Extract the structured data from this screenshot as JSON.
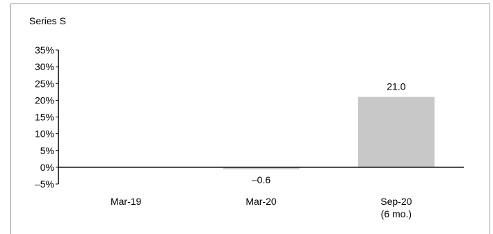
{
  "chart_data": {
    "type": "bar",
    "title": "Series S",
    "categories": [
      "Mar-19",
      "Mar-20",
      "Sep-20"
    ],
    "category_sublabels": [
      "",
      "",
      "(6 mo.)"
    ],
    "values": [
      null,
      -0.6,
      21.0
    ],
    "data_labels": [
      "",
      "–0.6",
      "21.0"
    ],
    "ylim": [
      -5,
      35
    ],
    "yticks": [
      35,
      30,
      25,
      20,
      15,
      10,
      5,
      0,
      -5
    ],
    "ytick_labels": [
      "35%",
      "30%",
      "25%",
      "20%",
      "15%",
      "10%",
      "5%",
      "0%",
      "–5%"
    ],
    "xlabel": "",
    "ylabel": "",
    "grid": false,
    "colors": {
      "bar": "#c8c8c8",
      "axis": "#000000",
      "frame": "#9e9e9e"
    }
  }
}
